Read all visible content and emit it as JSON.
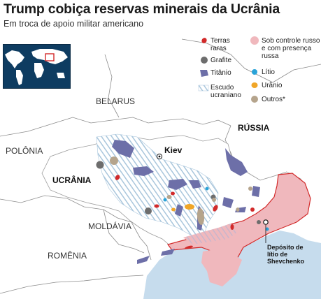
{
  "header": {
    "title": "Trump cobiça reservas minerais da Ucrânia",
    "subtitle": "Em troca de apoio militar americano"
  },
  "labels": {
    "belarus": "BELARUS",
    "russia": "RÚSSIA",
    "poland": "POLÔNIA",
    "ukraine": "UCRÂNIA",
    "moldova": "MOLDÁVIA",
    "romania": "ROMÊNIA",
    "kiev": "Kiev"
  },
  "legend": {
    "rare_earths": "Terras raras",
    "graphite": "Grafite",
    "titanium": "Titânio",
    "shield": "Escudo ucraniano",
    "russian_control": "Sob controle russo e com presença russa",
    "lithium": "Lítio",
    "uranium": "Urânio",
    "others": "Outros*"
  },
  "callout": {
    "text": "Depósito de lítio de Shevchenko"
  },
  "colors": {
    "rare_earths": "#d22a2a",
    "graphite": "#6d6d6d",
    "titanium": "#6d6fa8",
    "lithium": "#2aa3d8",
    "uranium": "#f0a628",
    "others": "#b5a48c",
    "russian_control": "#f0b8bd",
    "sea": "#c6dced",
    "shield": "#a9c6dc"
  }
}
